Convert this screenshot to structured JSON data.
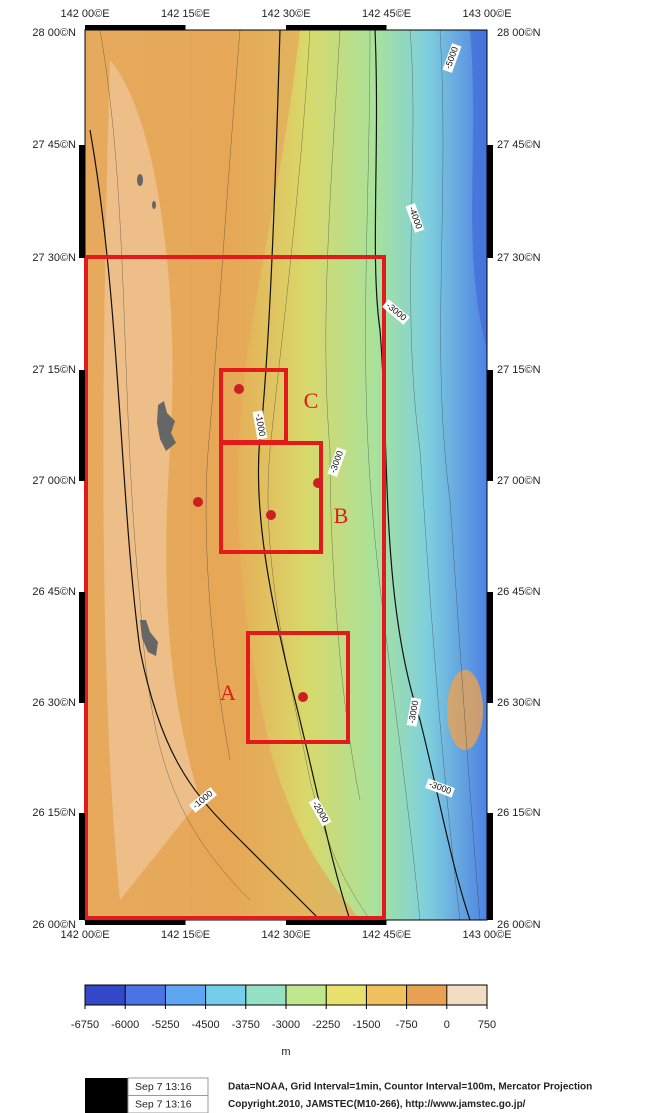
{
  "map": {
    "lon_labels": [
      "142 00©E",
      "142 15©E",
      "142 30©E",
      "142 45©E",
      "143 00©E"
    ],
    "lat_labels": [
      "28 00©N",
      "27 45©N",
      "27 30©N",
      "27 15©N",
      "27 00©N",
      "26 45©N",
      "26 30©N",
      "26 15©N",
      "26 00©N"
    ],
    "contour_labels": [
      -5000,
      -4000,
      -3000,
      -1000,
      -3000,
      -3000,
      -3000,
      -1000,
      -2000
    ],
    "sites": [
      "C",
      "B",
      "A"
    ]
  },
  "colorbar": {
    "ticks": [
      -6750,
      -6000,
      -5250,
      -4500,
      -3750,
      -3000,
      -2250,
      -1500,
      -750,
      0,
      750
    ],
    "colors": [
      "#3347c9",
      "#4a73e3",
      "#5ea6f0",
      "#74cdea",
      "#93e0c4",
      "#bfe88e",
      "#e8df6c",
      "#f0c15c",
      "#e9a253",
      "#f2ddc4"
    ],
    "unit": "m"
  },
  "footer": {
    "stamps": [
      "Sep  7 13:16",
      "Sep  7 13:16"
    ],
    "lines": [
      "Data=NOAA, Grid Interval=1min, Countor Interval=100m, Mercator Projection",
      "Copyright.2010, JAMSTEC(M10-266), http://www.jamstec.go.jp/"
    ]
  }
}
